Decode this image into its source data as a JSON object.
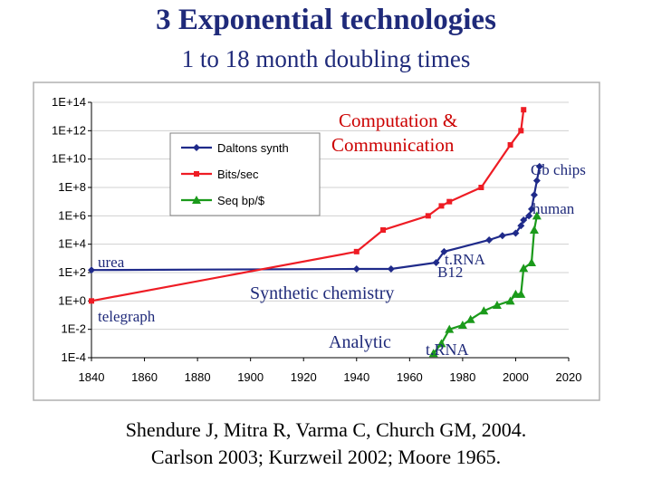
{
  "slide": {
    "title": "3 Exponential technologies",
    "subtitle": "1 to 18 month doubling times",
    "citation_line1": "Shendure J, Mitra R, Varma C, Church GM,  2004.",
    "citation_line2": "Carlson 2003; Kurzweil 2002; Moore 1965."
  },
  "colors": {
    "title": "#1f2a7a",
    "annotation": "#1f2a7a",
    "annotation_red": "#cc0000",
    "daltons": "#1f2a8a",
    "bits": "#ee1c24",
    "seq": "#1b9a1b",
    "frame": "#b0b0b0"
  },
  "chart_data": {
    "type": "line",
    "y_scale": "log",
    "xlim": [
      1840,
      2020
    ],
    "ylim": [
      0.0001,
      100000000000000.0
    ],
    "x_ticks": [
      "1840",
      "1860",
      "1880",
      "1900",
      "1920",
      "1940",
      "1960",
      "1980",
      "2000",
      "2020"
    ],
    "y_ticks": [
      "1E-4",
      "1E-2",
      "1E+0",
      "1E+2",
      "1E+4",
      "1E+6",
      "1E+8",
      "1E+10",
      "1E+12",
      "1E+14"
    ],
    "grid": "horizontal",
    "legend": "top-left",
    "series": [
      {
        "name": "Daltons synth",
        "color": "#1f2a8a",
        "marker": "diamond",
        "points": [
          [
            1840,
            150
          ],
          [
            1940,
            180
          ],
          [
            1953,
            180
          ],
          [
            1970,
            500
          ],
          [
            1973,
            3000
          ],
          [
            1990,
            20000
          ],
          [
            1995,
            40000
          ],
          [
            2000,
            60000
          ],
          [
            2002,
            200000
          ],
          [
            2003,
            500000
          ],
          [
            2005,
            1000000
          ],
          [
            2006,
            3000000
          ],
          [
            2007,
            30000000
          ],
          [
            2008,
            300000000
          ],
          [
            2009,
            3000000000
          ]
        ]
      },
      {
        "name": "Bits/sec",
        "color": "#ee1c24",
        "marker": "square",
        "points": [
          [
            1840,
            1
          ],
          [
            1940,
            3000
          ],
          [
            1950,
            100000
          ],
          [
            1967,
            1000000
          ],
          [
            1972,
            5000000
          ],
          [
            1975,
            10000000
          ],
          [
            1987,
            100000000
          ],
          [
            1998,
            100000000000.0
          ],
          [
            2002,
            1000000000000.0
          ],
          [
            2003,
            30000000000000.0
          ]
        ]
      },
      {
        "name": "Seq bp/$",
        "color": "#1b9a1b",
        "marker": "triangle",
        "points": [
          [
            1969,
            0.0002
          ],
          [
            1972,
            0.001
          ],
          [
            1975,
            0.01
          ],
          [
            1980,
            0.02
          ],
          [
            1983,
            0.05
          ],
          [
            1988,
            0.2
          ],
          [
            1993,
            0.5
          ],
          [
            1998,
            1
          ],
          [
            2000,
            3
          ],
          [
            2002,
            3
          ],
          [
            2003,
            200
          ],
          [
            2006,
            500
          ],
          [
            2007,
            100000
          ],
          [
            2008,
            1000000
          ]
        ]
      }
    ],
    "annotations": [
      {
        "text": "Computation &",
        "color": "red"
      },
      {
        "text": "Communication",
        "color": "red"
      },
      {
        "text": "Gb chips",
        "color": "blue"
      },
      {
        "text": "human",
        "color": "blue"
      },
      {
        "text": "urea",
        "color": "blue"
      },
      {
        "text": "t.RNA",
        "color": "blue"
      },
      {
        "text": "B12",
        "color": "blue"
      },
      {
        "text": "Synthetic chemistry",
        "color": "blue"
      },
      {
        "text": "telegraph",
        "color": "blue"
      },
      {
        "text": "Analytic",
        "color": "blue"
      },
      {
        "text": "t.RNA",
        "color": "blue"
      }
    ]
  }
}
